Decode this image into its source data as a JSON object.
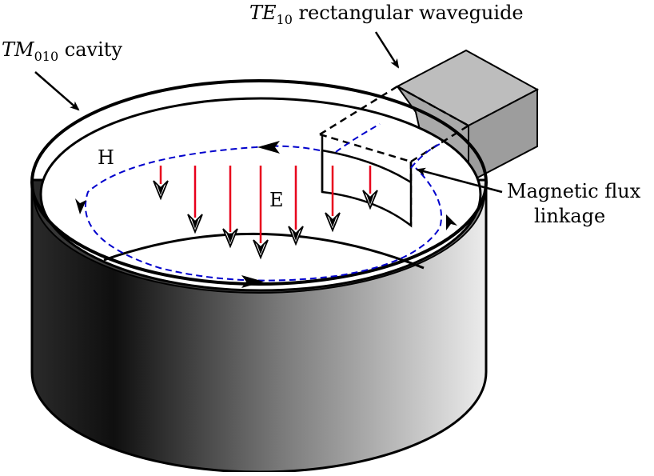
{
  "labels": {
    "cavity": {
      "symbol": "TM",
      "subscript": "010",
      "text": " cavity"
    },
    "waveguide": {
      "symbol": "TE",
      "subscript": "10",
      "text": " rectangular waveguide"
    },
    "flux_line1": "Magnetic flux",
    "flux_line2": "linkage",
    "h_field": "H",
    "e_field": "E"
  },
  "colors": {
    "e_field_arrows": "#e8001c",
    "h_field_loop": "#0000cc",
    "waveguide_fill": "#a9a9a9",
    "cavity_wall_dark": "#1a1a1a",
    "cavity_wall_light": "#ececec"
  },
  "icons": {
    "arrowhead": "open-chevron-arrowhead",
    "pointer": "callout-arrow"
  }
}
